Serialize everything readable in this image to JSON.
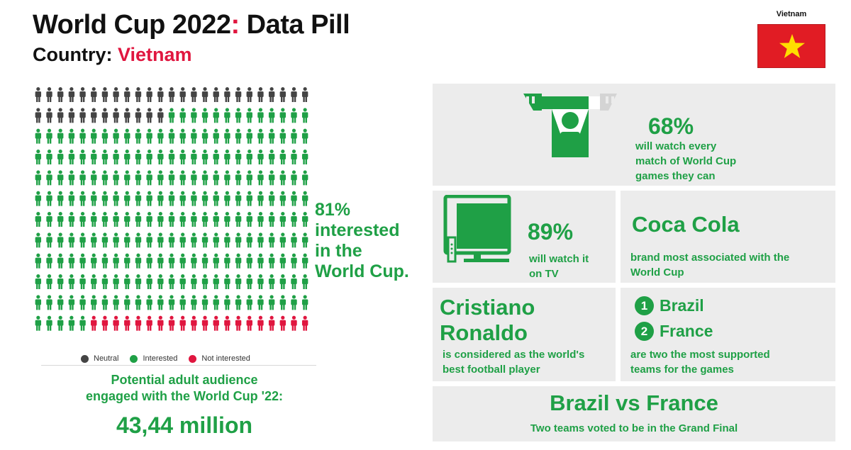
{
  "header": {
    "title_main": "World Cup 2022",
    "title_colon": ":",
    "title_rest": " Data Pill",
    "country_label": "Country: ",
    "country_value": "Vietnam"
  },
  "flag": {
    "label": "Vietnam",
    "color": "#e11c24",
    "star_color": "#ffde00"
  },
  "pictogram": {
    "total": 300,
    "neutral_count": 37,
    "interested_count": 243,
    "not_interested_count": 20,
    "colors": {
      "neutral": "#444444",
      "interested": "#1fa046",
      "not_interested": "#e0163f"
    }
  },
  "interest_stat": {
    "pct": "81%",
    "line1": "interested",
    "line2": "in the",
    "line3": "World Cup."
  },
  "legend": {
    "neutral": "Neutral",
    "interested": "Interested",
    "not_interested": "Not interested"
  },
  "audience": {
    "label_line1": "Potential adult audience",
    "label_line2": "engaged with the World Cup '22:",
    "value": "43,44 million"
  },
  "watch_every": {
    "pct": "68%",
    "line1": "will watch every",
    "line2": "match of World Cup",
    "line3": "games they can",
    "icon": "fan-scarf-icon"
  },
  "tv": {
    "pct": "89%",
    "line1": "will watch it",
    "line2": "on TV",
    "icon": "tv-icon"
  },
  "brand": {
    "name": "Coca Cola",
    "line1": "brand most associated with the",
    "line2": "World Cup"
  },
  "best_player": {
    "name_line1": "Cristiano",
    "name_line2": "Ronaldo",
    "line1": "is considered as the world's",
    "line2": "best football player"
  },
  "teams": {
    "first_rank": "1",
    "first_name": "Brazil",
    "second_rank": "2",
    "second_name": "France",
    "line1": "are two the most supported",
    "line2": "teams for the games"
  },
  "final": {
    "title": "Brazil vs France",
    "subtitle": "Two teams voted to be in the Grand Final"
  }
}
